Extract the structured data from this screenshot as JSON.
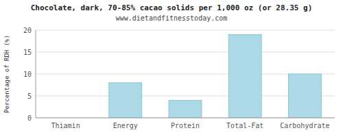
{
  "chart_data": {
    "type": "bar",
    "title": "Chocolate, dark, 70-85% cacao solids per 1,000 oz (or 28.35 g)",
    "subtitle": "www.dietandfitnesstoday.com",
    "ylabel": "Percentage of RDH (%)",
    "categories": [
      "Thiamin",
      "Energy",
      "Protein",
      "Total-Fat",
      "Carbohydrate"
    ],
    "values": [
      0.0,
      8.0,
      4.0,
      19.0,
      10.0
    ],
    "color": "#add8e6",
    "ylim": [
      0,
      20
    ],
    "yticks": [
      0,
      5,
      10,
      15,
      20
    ],
    "grid": true
  }
}
